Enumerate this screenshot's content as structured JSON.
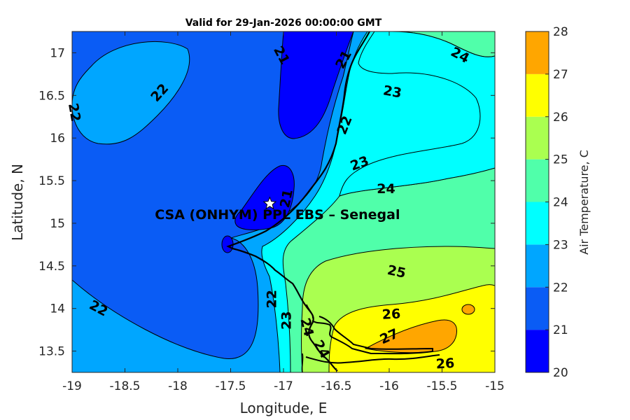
{
  "chart_data": {
    "type": "filled-contour",
    "title": "Valid for 29-Jan-2026 00:00:00 GMT",
    "xlabel": "Longitude, E",
    "ylabel": "Latitude, N",
    "xlim": [
      -19,
      -15
    ],
    "ylim": [
      13.25,
      17.25
    ],
    "xticks": [
      -19,
      -18.5,
      -18,
      -17.5,
      -17,
      -16.5,
      -16,
      -15.5,
      -15
    ],
    "yticks": [
      13.5,
      14,
      14.5,
      15,
      15.5,
      16,
      16.5,
      17
    ],
    "colorbar": {
      "label": "Air Temperature, C",
      "levels": [
        20,
        21,
        22,
        23,
        24,
        25,
        26,
        27,
        28
      ],
      "colors": [
        "#0000ff",
        "#0a5cf5",
        "#00a6ff",
        "#00ffff",
        "#50ffaa",
        "#aaff50",
        "#ffff00",
        "#ffa600",
        "#ff5a00"
      ]
    },
    "contour_labels": [
      {
        "text": "21",
        "lon": -17.02,
        "lat": 16.97,
        "angle": 62
      },
      {
        "text": "21",
        "lon": -16.43,
        "lat": 16.92,
        "angle": -62
      },
      {
        "text": "21",
        "lon": -16.97,
        "lat": 15.29,
        "angle": -78
      },
      {
        "text": "22",
        "lon": -18.17,
        "lat": 16.53,
        "angle": -48
      },
      {
        "text": "22",
        "lon": -18.98,
        "lat": 16.3,
        "angle": 80
      },
      {
        "text": "22",
        "lon": -16.42,
        "lat": 16.15,
        "angle": -68
      },
      {
        "text": "22",
        "lon": -17.11,
        "lat": 14.11,
        "angle": -90
      },
      {
        "text": "22",
        "lon": -18.75,
        "lat": 14.0,
        "angle": 28
      },
      {
        "text": "23",
        "lon": -15.97,
        "lat": 16.54,
        "angle": 10
      },
      {
        "text": "23",
        "lon": -16.28,
        "lat": 15.7,
        "angle": -20
      },
      {
        "text": "23",
        "lon": -16.97,
        "lat": 13.86,
        "angle": -90
      },
      {
        "text": "24",
        "lon": -15.33,
        "lat": 16.97,
        "angle": 28
      },
      {
        "text": "24",
        "lon": -16.03,
        "lat": 15.4,
        "angle": 0
      },
      {
        "text": "24",
        "lon": -16.78,
        "lat": 13.78,
        "angle": 76
      },
      {
        "text": "24",
        "lon": -16.64,
        "lat": 13.52,
        "angle": 60
      },
      {
        "text": "25",
        "lon": -15.93,
        "lat": 14.43,
        "angle": 12
      },
      {
        "text": "26",
        "lon": -15.98,
        "lat": 13.93,
        "angle": -3
      },
      {
        "text": "26",
        "lon": -15.47,
        "lat": 13.35,
        "angle": -3
      },
      {
        "text": "27",
        "lon": -16.0,
        "lat": 13.67,
        "angle": -24
      }
    ],
    "annotations": [
      {
        "text": "CSA (ONHYM) PPL EBS  – Senegal",
        "lon": -17.13,
        "lat": 15.1,
        "marker": "star",
        "marker_lat": 15.23
      }
    ]
  }
}
